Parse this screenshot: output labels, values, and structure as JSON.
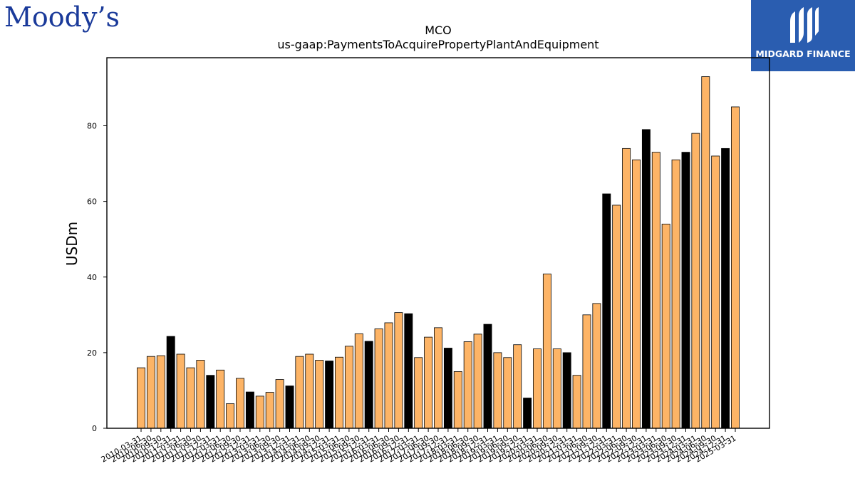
{
  "logos": {
    "moodys": "Moody’s",
    "midgard": "MIDGARD FINANCE"
  },
  "chart_data": {
    "type": "bar",
    "title": "MCO",
    "subtitle": "us-gaap:PaymentsToAcquirePropertyPlantAndEquipment",
    "ylabel": "USDm",
    "xlabel": "",
    "ylim": [
      0,
      98
    ],
    "yticks": [
      0,
      20,
      40,
      60,
      80
    ],
    "colors": {
      "normal": "#FDB466",
      "highlight": "#000000",
      "edge": "#000000"
    },
    "categories": [
      "2010-03-31",
      "2010-06-30",
      "2010-09-30",
      "2010-12-31",
      "2011-03-31",
      "2011-06-30",
      "2011-09-30",
      "2011-12-31",
      "2012-03-31",
      "2012-06-30",
      "2012-09-30",
      "2012-12-31",
      "2013-03-31",
      "2013-06-30",
      "2013-09-30",
      "2013-12-31",
      "2014-03-31",
      "2014-06-30",
      "2014-09-30",
      "2014-12-31",
      "2015-03-31",
      "2015-06-30",
      "2015-09-30",
      "2015-12-31",
      "2016-03-31",
      "2016-06-30",
      "2016-09-30",
      "2016-12-31",
      "2017-03-31",
      "2017-06-30",
      "2017-09-30",
      "2017-12-31",
      "2018-03-31",
      "2018-06-30",
      "2018-09-30",
      "2018-12-31",
      "2019-03-31",
      "2019-06-30",
      "2019-09-30",
      "2019-12-31",
      "2020-03-31",
      "2020-06-30",
      "2020-09-30",
      "2020-12-31",
      "2021-03-31",
      "2021-06-30",
      "2021-09-30",
      "2021-12-31",
      "2022-03-31",
      "2022-06-30",
      "2022-09-30",
      "2022-12-31",
      "2023-03-31",
      "2023-06-30",
      "2023-09-30",
      "2023-12-31",
      "2024-03-31",
      "2024-06-30",
      "2024-09-30",
      "2024-12-31",
      "2025-03-31"
    ],
    "values": [
      16,
      19,
      19.2,
      24.3,
      19.6,
      16,
      18,
      14,
      15.4,
      6.5,
      13.2,
      9.6,
      8.5,
      9.5,
      12.9,
      11.2,
      19,
      19.6,
      18,
      17.8,
      18.8,
      21.7,
      25,
      23,
      26.3,
      27.9,
      30.6,
      30.3,
      18.7,
      24.1,
      26.6,
      21.2,
      15,
      22.9,
      24.9,
      27.5,
      20,
      18.7,
      22.1,
      8,
      21,
      40.8,
      21,
      20,
      14,
      30,
      33,
      62,
      59,
      74,
      71,
      79,
      73,
      54,
      71,
      73,
      78,
      93,
      72,
      74,
      85
    ],
    "highlight_indices": [
      3,
      7,
      11,
      15,
      19,
      23,
      27,
      31,
      35,
      39,
      43,
      47,
      51,
      55,
      59
    ]
  }
}
